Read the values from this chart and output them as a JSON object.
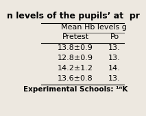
{
  "title": "n levels of the pupils’ at  pr",
  "col_header1": "Mean Hb levels g",
  "col_header2_left": "Pretest",
  "col_header2_right": "Po",
  "rows": [
    [
      "13.8±0.9",
      "13."
    ],
    [
      "12.8±0.9",
      "13."
    ],
    [
      "14.2±1.2",
      "14."
    ],
    [
      "13.6±0.8",
      "13."
    ]
  ],
  "footer": "Experimental Schools: ¹ⁿK",
  "bg_color": "#ede8e0",
  "line_color": "#000000",
  "text_color": "#000000",
  "title_fontsize": 9.0,
  "cell_fontsize": 8.0,
  "footer_fontsize": 7.5
}
